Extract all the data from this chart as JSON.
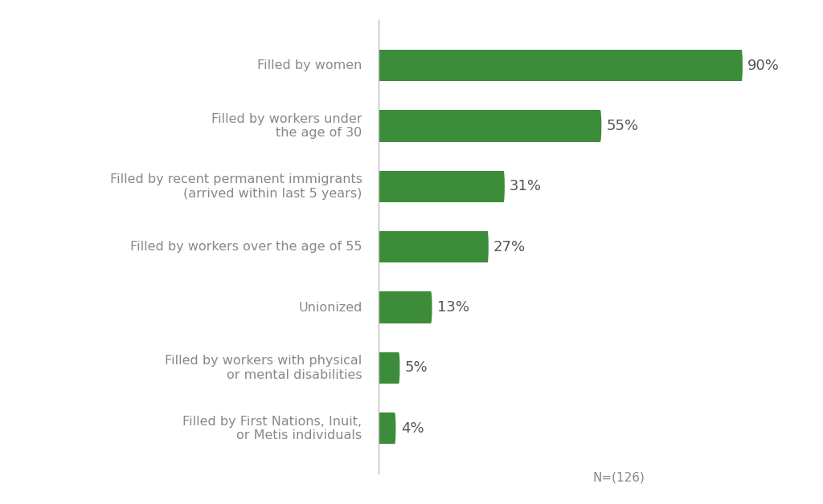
{
  "categories": [
    "Filled by First Nations, Inuit,\nor Metis individuals",
    "Filled by workers with physical\nor mental disabilities",
    "Unionized",
    "Filled by workers over the age of 55",
    "Filled by recent permanent immigrants\n(arrived within last 5 years)",
    "Filled by workers under\nthe age of 30",
    "Filled by women"
  ],
  "values": [
    4,
    5,
    13,
    27,
    31,
    55,
    90
  ],
  "bar_color": "#3d8c3a",
  "label_color": "#888888",
  "value_color": "#555555",
  "background_color": "#ffffff",
  "n_label": "N=(126)",
  "bar_height": 0.52,
  "label_fontsize": 11.5,
  "value_fontsize": 13
}
